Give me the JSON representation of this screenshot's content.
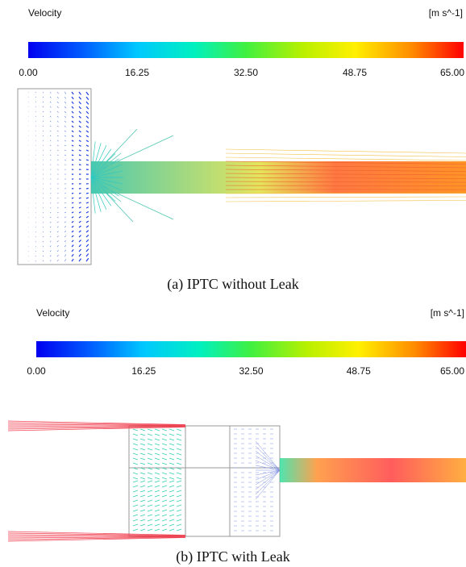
{
  "panels": [
    {
      "legend_title": "Velocity",
      "unit": "[m s^-1]",
      "ticks": [
        "0.00",
        "16.25",
        "32.50",
        "48.75",
        "65.00"
      ],
      "caption": "(a) IPTC without Leak"
    },
    {
      "legend_title": "Velocity",
      "unit": "[m s^-1]",
      "ticks": [
        "0.00",
        "16.25",
        "32.50",
        "48.75",
        "65.00"
      ],
      "caption": "(b) IPTC with Leak"
    }
  ]
}
